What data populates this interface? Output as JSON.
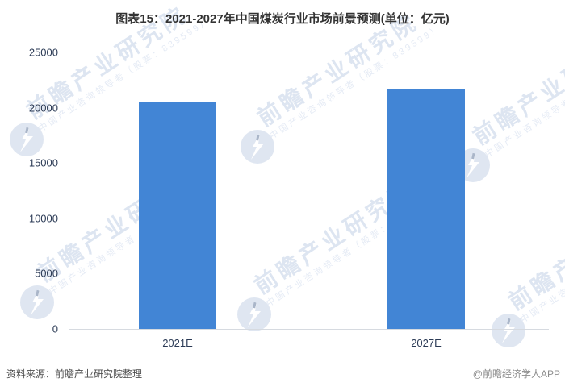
{
  "title": "图表15：2021-2027年中国煤炭行业市场前景预测(单位：亿元)",
  "footer": {
    "source": "资料来源：前瞻产业研究院整理",
    "credit": "@前瞻经济学人APP"
  },
  "watermark": {
    "main": "前瞻产业研究院",
    "sub": "中国产业咨询领导者（股票：839599）",
    "logo": "qianzhan-logo-icon"
  },
  "colors": {
    "bar": "#4285d5",
    "axis_label": "#2b3a55",
    "title": "#333333",
    "source_text": "#4d4d4d",
    "credit_text": "#8c8c8c",
    "watermark": "#dde5f1",
    "axis_line": "#d6dae0"
  },
  "chart_data": {
    "type": "bar",
    "categories": [
      "2021E",
      "2027E"
    ],
    "values": [
      20450,
      21650
    ],
    "title": "图表15：2021-2027年中国煤炭行业市场前景预测(单位：亿元)",
    "xlabel": "",
    "ylabel": "",
    "unit": "亿元",
    "ylim": [
      0,
      25000
    ],
    "yticks": [
      0,
      5000,
      10000,
      15000,
      20000,
      25000
    ],
    "grid": false,
    "legend": false,
    "bar_color": "#4285d5"
  }
}
